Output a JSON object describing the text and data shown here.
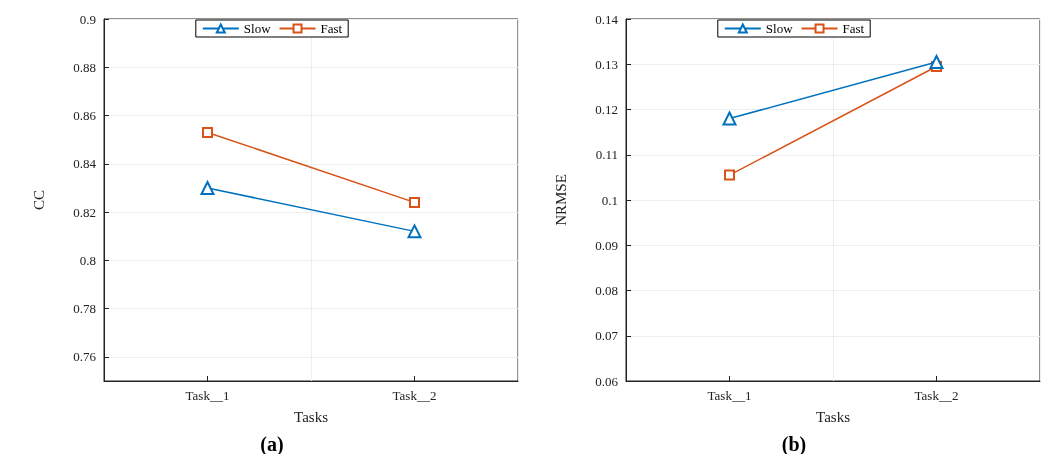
{
  "chart_data": [
    {
      "type": "line",
      "xlabel": "Tasks",
      "ylabel": "CC",
      "categories": [
        "Task__1",
        "Task__2"
      ],
      "series": [
        {
          "name": "Slow",
          "color": "#0072bd",
          "marker": "triangle",
          "values": [
            0.83,
            0.812
          ]
        },
        {
          "name": "Fast",
          "color": "#d95319",
          "marker": "square",
          "values": [
            0.853,
            0.824
          ]
        }
      ],
      "ylim": [
        0.75,
        0.9
      ],
      "yticks": [
        0.76,
        0.78,
        0.8,
        0.82,
        0.84,
        0.86,
        0.88,
        0.9
      ],
      "grid": true,
      "legend": "top",
      "annotations": [
        "(a)"
      ]
    },
    {
      "type": "line",
      "xlabel": "Tasks",
      "ylabel": "NRMSE",
      "categories": [
        "Task__1",
        "Task__2"
      ],
      "series": [
        {
          "name": "Slow",
          "color": "#0072bd",
          "marker": "triangle",
          "values": [
            0.118,
            0.1305
          ]
        },
        {
          "name": "Fast",
          "color": "#d95319",
          "marker": "square",
          "values": [
            0.1055,
            0.1295
          ]
        }
      ],
      "ylim": [
        0.06,
        0.14
      ],
      "yticks": [
        0.06,
        0.07,
        0.08,
        0.09,
        0.1,
        0.11,
        0.12,
        0.13,
        0.14
      ],
      "grid": true,
      "legend": "top",
      "annotations": [
        "(b)"
      ]
    }
  ]
}
